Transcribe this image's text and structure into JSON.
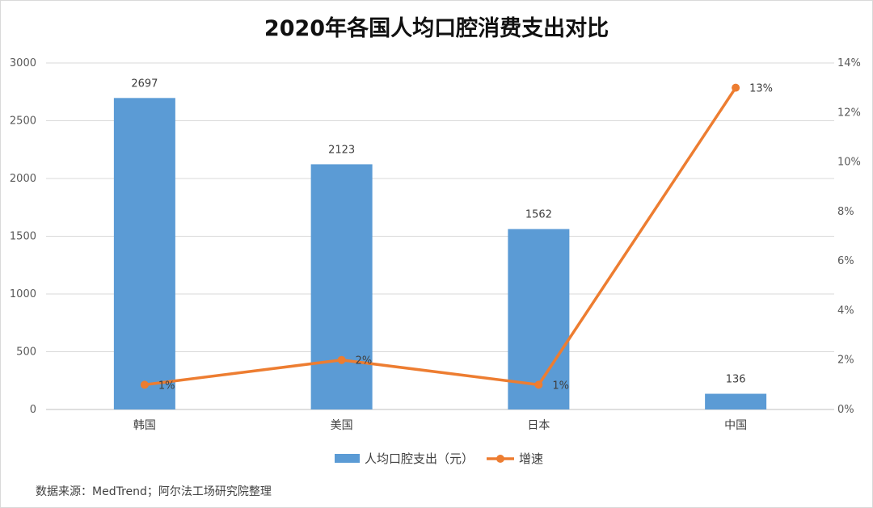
{
  "chart_data": {
    "type": "bar",
    "title": "2020年各国人均口腔消费支出对比",
    "categories": [
      "韩国",
      "美国",
      "日本",
      "中国"
    ],
    "series": [
      {
        "name": "人均口腔支出（元）",
        "type": "bar",
        "axis": "left",
        "values": [
          2697,
          2123,
          1562,
          136
        ],
        "labels": [
          "2697",
          "2123",
          "1562",
          "136"
        ],
        "color": "#5B9BD5"
      },
      {
        "name": "增速",
        "type": "line",
        "axis": "right",
        "values": [
          1,
          2,
          1,
          13
        ],
        "labels": [
          "1%",
          "2%",
          "1%",
          "13%"
        ],
        "color": "#ED7D31"
      }
    ],
    "y_left": {
      "ylim": [
        0,
        3000
      ],
      "ticks": [
        0,
        500,
        1000,
        1500,
        2000,
        2500,
        3000
      ],
      "tick_labels": [
        "0",
        "500",
        "1000",
        "1500",
        "2000",
        "2500",
        "3000"
      ]
    },
    "y_right": {
      "ylim": [
        0,
        14
      ],
      "ticks": [
        0,
        2,
        4,
        6,
        8,
        10,
        12,
        14
      ],
      "tick_labels": [
        "0%",
        "2%",
        "4%",
        "6%",
        "8%",
        "10%",
        "12%",
        "14%"
      ]
    },
    "grid": true,
    "legend": "bottom",
    "source": "数据来源：MedTrend；阿尔法工场研究院整理"
  }
}
